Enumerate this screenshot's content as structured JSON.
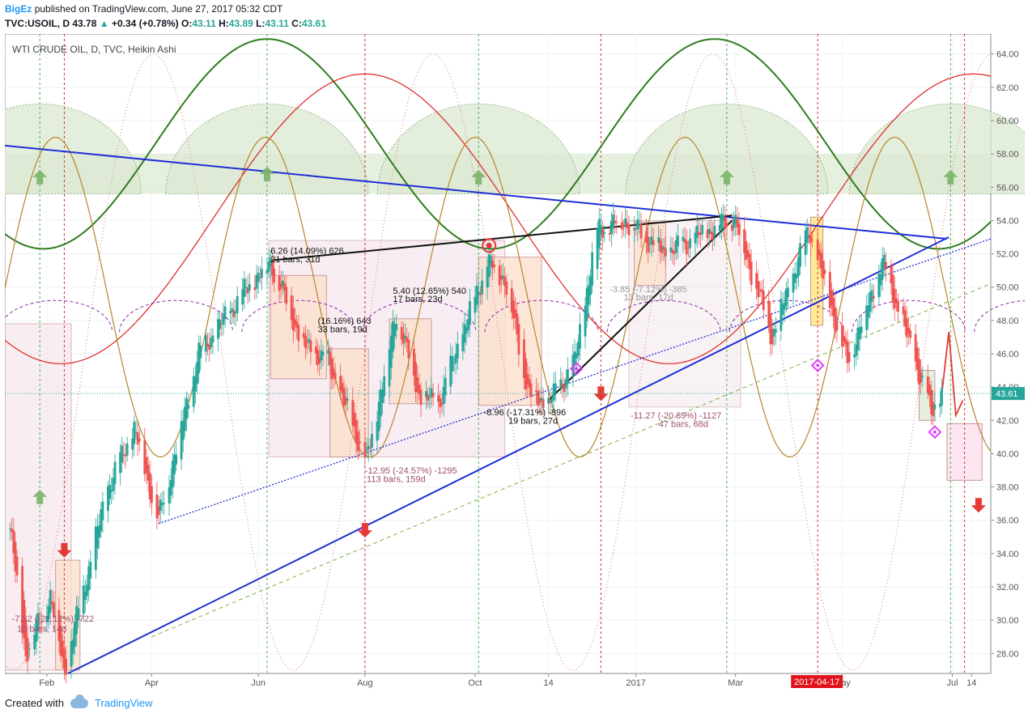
{
  "header": {
    "author": "BigEz",
    "published_text": "published on TradingView.com, June 27, 2017 05:32 CDT",
    "symbol": "TVC:USOIL, D",
    "last": "43.78",
    "change_arrow": "▲",
    "change": "+0.34 (+0.78%)",
    "o_label": "O:",
    "o_value": "43.11",
    "h_label": "H:",
    "h_value": "43.89",
    "l_label": "L:",
    "l_value": "43.11",
    "c_label": "C:",
    "c_value": "43.61"
  },
  "footer": {
    "created_with": "Created with",
    "brand": "TradingView"
  },
  "chart_data": {
    "type": "candlestick",
    "title": "WTI CRUDE OIL, D, TVC, Heikin Ashi",
    "price_label": "43.61",
    "date_flag": "2017-04-17",
    "y_range": [
      26.8,
      65.2
    ],
    "y_ticks": [
      "28.00",
      "30.00",
      "32.00",
      "34.00",
      "36.00",
      "38.00",
      "40.00",
      "42.00",
      "44.00",
      "46.00",
      "48.00",
      "50.00",
      "52.00",
      "54.00",
      "56.00",
      "58.00",
      "60.00",
      "62.00",
      "64.00"
    ],
    "x_ticks": [
      "Feb",
      "Apr",
      "Jun",
      "Aug",
      "Oct",
      "14",
      "2017",
      "Mar",
      "May",
      "Jul",
      "14"
    ],
    "price_path": [
      {
        "date": "2016-01-11",
        "price": 35.5
      },
      {
        "date": "2016-01-20",
        "price": 28.0
      },
      {
        "date": "2016-02-03",
        "price": 31.5
      },
      {
        "date": "2016-02-11",
        "price": 27.0
      },
      {
        "date": "2016-03-07",
        "price": 38.0
      },
      {
        "date": "2016-03-22",
        "price": 41.5
      },
      {
        "date": "2016-04-05",
        "price": 36.0
      },
      {
        "date": "2016-04-28",
        "price": 46.0
      },
      {
        "date": "2016-05-26",
        "price": 50.0
      },
      {
        "date": "2016-06-08",
        "price": 51.5
      },
      {
        "date": "2016-06-27",
        "price": 46.5
      },
      {
        "date": "2016-07-11",
        "price": 45.5
      },
      {
        "date": "2016-08-02",
        "price": 39.5
      },
      {
        "date": "2016-08-19",
        "price": 48.5
      },
      {
        "date": "2016-09-01",
        "price": 43.5
      },
      {
        "date": "2016-09-12",
        "price": 43.0
      },
      {
        "date": "2016-10-10",
        "price": 51.5
      },
      {
        "date": "2016-10-20",
        "price": 50.5
      },
      {
        "date": "2016-11-03",
        "price": 43.5
      },
      {
        "date": "2016-11-14",
        "price": 43.0
      },
      {
        "date": "2016-11-29",
        "price": 45.5
      },
      {
        "date": "2016-12-12",
        "price": 53.5
      },
      {
        "date": "2016-12-28",
        "price": 54.0
      },
      {
        "date": "2017-01-20",
        "price": 52.0
      },
      {
        "date": "2017-02-28",
        "price": 54.2
      },
      {
        "date": "2017-03-22",
        "price": 47.0
      },
      {
        "date": "2017-04-12",
        "price": 53.5
      },
      {
        "date": "2017-05-04",
        "price": 45.5
      },
      {
        "date": "2017-05-24",
        "price": 51.5
      },
      {
        "date": "2017-06-12",
        "price": 45.5
      },
      {
        "date": "2017-06-21",
        "price": 42.5
      },
      {
        "date": "2017-06-27",
        "price": 43.6
      }
    ],
    "annotations": [
      {
        "text": "6.26 (14.09%) 626"
      },
      {
        "text": "21 bars, 31d"
      },
      {
        "text": "(16.16%) 643"
      },
      {
        "text": "33 bars, 19d"
      },
      {
        "text": "5.40 (12.65%) 540"
      },
      {
        "text": "17 bars, 23d"
      },
      {
        "text": "-12.95 (-24.57%) -1295"
      },
      {
        "text": "113 bars, 159d"
      },
      {
        "text": "-8.96 (-17.31%) -896"
      },
      {
        "text": "19 bars, 27d"
      },
      {
        "text": "-3.85 (-7.12%) -385"
      },
      {
        "text": "13 bars, 17d"
      },
      {
        "text": "-11.27 (-20.89%) -1127"
      },
      {
        "text": "47 bars, 68d"
      },
      {
        "text": "-7.22 (-21.12%) -722"
      },
      {
        "text": "10 bars, 14d"
      }
    ],
    "colors": {
      "up": "#26a69a",
      "down": "#ef5350",
      "trend": "#1f2ed6",
      "cycle_green": "#2e7d1f",
      "cycle_red": "#e02020",
      "cycle_brown": "#b8862a"
    }
  }
}
